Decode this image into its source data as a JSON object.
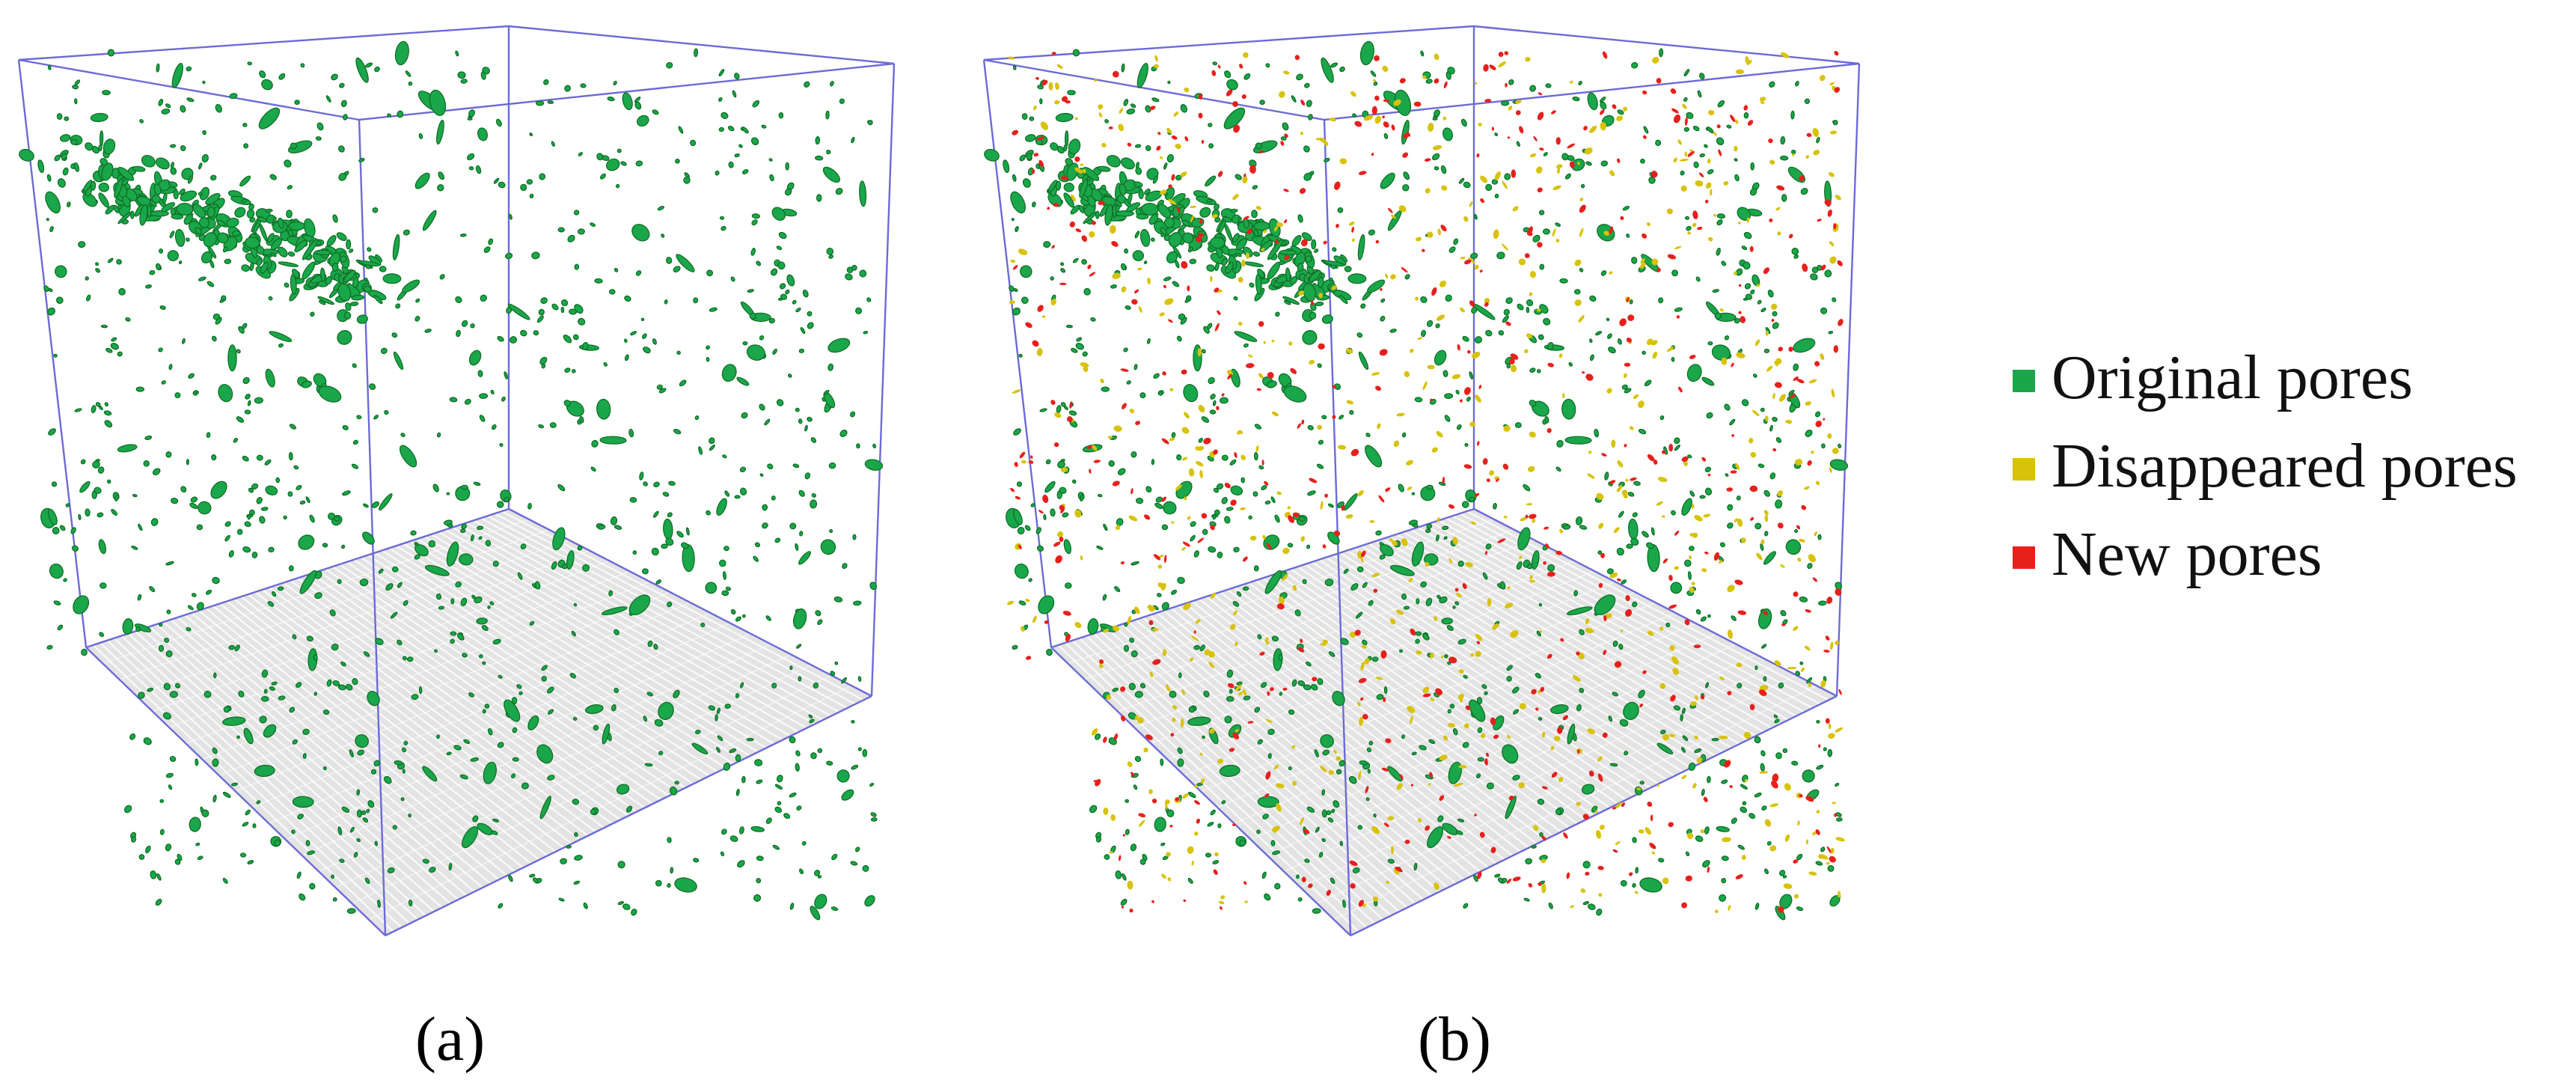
{
  "panels": [
    {
      "id": "a",
      "caption": "(a)",
      "pore_types": [
        "original"
      ]
    },
    {
      "id": "b",
      "caption": "(b)",
      "pore_types": [
        "original",
        "disappeared",
        "new"
      ]
    }
  ],
  "legend": [
    {
      "key": "original",
      "label": "Original pores",
      "color": "#1aa64a"
    },
    {
      "key": "disappeared",
      "label": "Disappeared pores",
      "color": "#d8c20a"
    },
    {
      "key": "new",
      "label": "New pores",
      "color": "#e8201c"
    }
  ],
  "colors": {
    "box_edge": "#6b6bd8",
    "floor": "#e3e3e3",
    "floor_stripe": "#ffffff",
    "pore_outline": "#0d6b22"
  }
}
